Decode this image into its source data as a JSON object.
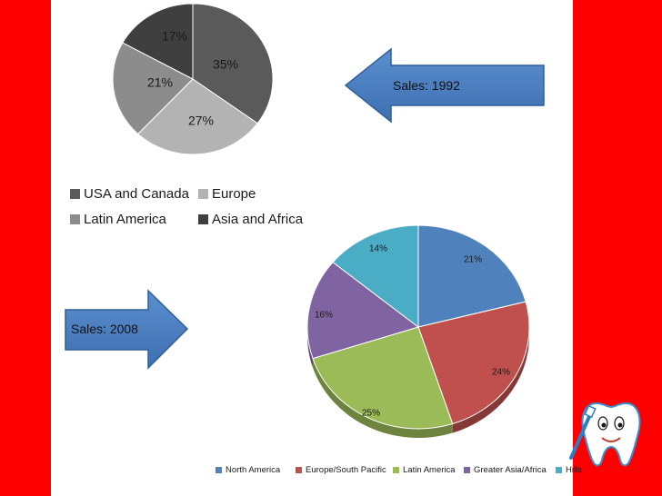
{
  "chart_data": [
    {
      "type": "pie",
      "title": "",
      "labels": [
        "USA and Canada",
        "Europe",
        "Latin America",
        "Asia and Africa"
      ],
      "values": [
        35,
        27,
        21,
        17
      ],
      "value_labels": [
        "35%",
        "27%",
        "21%",
        "17%"
      ],
      "colors": [
        "#5a5a5a",
        "#b3b3b3",
        "#8c8c8c",
        "#3f3f3f"
      ],
      "legend": "bottom",
      "annotation": "Sales: 1992"
    },
    {
      "type": "pie",
      "title": "",
      "labels": [
        "North America",
        "Europe/South Pacific",
        "Latin America",
        "Greater Asia/Africa",
        "Hills"
      ],
      "values": [
        21,
        24,
        25,
        16,
        14
      ],
      "value_labels": [
        "21%",
        "24%",
        "25%",
        "16%",
        "14%"
      ],
      "colors": [
        "#4f81bd",
        "#c0504d",
        "#9bbb59",
        "#8064a2",
        "#4bacc6"
      ],
      "legend": "bottom",
      "annotation": "Sales: 2008"
    }
  ],
  "decorations": {
    "mascot": "tooth-mascot-icon"
  }
}
